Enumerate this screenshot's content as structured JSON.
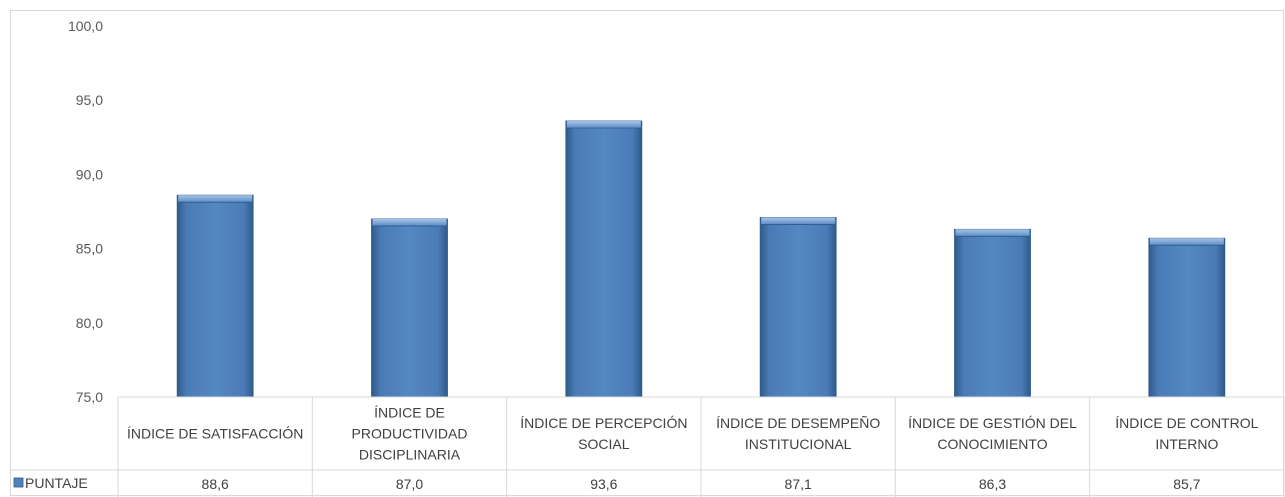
{
  "chart_data": {
    "type": "bar",
    "categories": [
      [
        "ÍNDICE DE SATISFACCIÓN"
      ],
      [
        "ÍNDICE DE",
        "PRODUCTIVIDAD",
        "DISCIPLINARIA"
      ],
      [
        "ÍNDICE DE PERCEPCIÓN",
        "SOCIAL"
      ],
      [
        "ÍNDICE DE DESEMPEÑO",
        "INSTITUCIONAL"
      ],
      [
        "ÍNDICE DE GESTIÓN DEL",
        "CONOCIMIENTO"
      ],
      [
        "ÍNDICE DE CONTROL",
        "INTERNO"
      ]
    ],
    "series": [
      {
        "name": "PUNTAJE",
        "values": [
          88.6,
          87.0,
          93.6,
          87.1,
          86.3,
          85.7
        ],
        "labels": [
          "88,6",
          "87,0",
          "93,6",
          "87,1",
          "86,3",
          "85,7"
        ]
      }
    ],
    "ylim": [
      75,
      100
    ],
    "yticks": [
      "75,0",
      "80,0",
      "85,0",
      "90,0",
      "95,0",
      "100,0"
    ],
    "ytick_values": [
      75,
      80,
      85,
      90,
      95,
      100
    ],
    "grid": false,
    "legend": "data-table-left",
    "colors": {
      "bar": "#4f81bd",
      "bar_dark": "#2f5a8a",
      "bar_light": "#8fb3df",
      "table_border": "#d9d9d9"
    }
  }
}
